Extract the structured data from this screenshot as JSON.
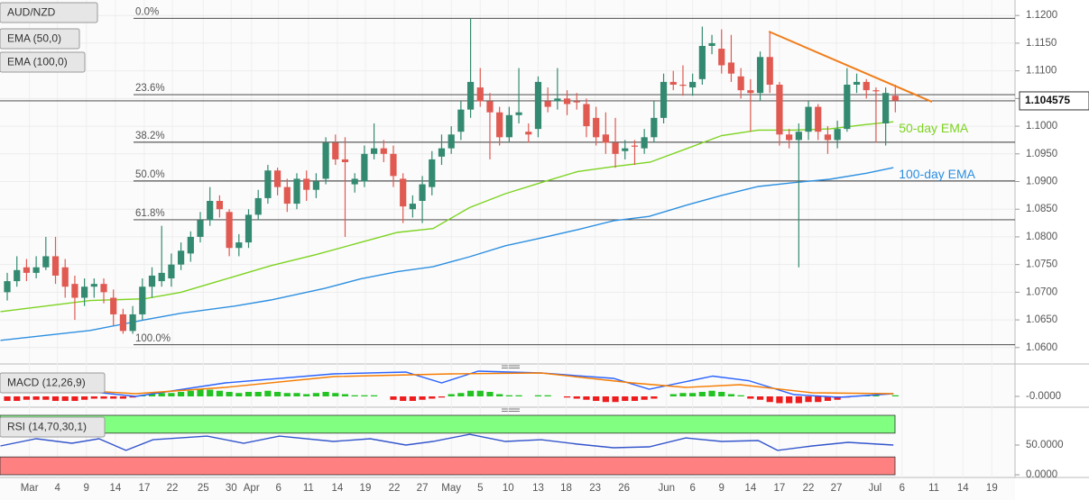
{
  "chart_data": [
    {
      "type": "candlestick",
      "title": "AUD/NZD",
      "xlim": [
        -0.75,
        104.4
      ],
      "xticks": [
        {
          "value": 2.3,
          "label": "Mar"
        },
        {
          "value": 5.2,
          "label": "4"
        },
        {
          "value": 8.2,
          "label": "9"
        },
        {
          "value": 11.2,
          "label": "14"
        },
        {
          "value": 14.2,
          "label": "17"
        },
        {
          "value": 17.1,
          "label": "22"
        },
        {
          "value": 20.3,
          "label": "25"
        },
        {
          "value": 23.2,
          "label": "30"
        },
        {
          "value": 25.3,
          "label": "Apr"
        },
        {
          "value": 28.1,
          "label": "6"
        },
        {
          "value": 31.2,
          "label": "11"
        },
        {
          "value": 34.2,
          "label": "14"
        },
        {
          "value": 37.1,
          "label": "19"
        },
        {
          "value": 40.1,
          "label": "22"
        },
        {
          "value": 43.0,
          "label": "27"
        },
        {
          "value": 46.0,
          "label": "May"
        },
        {
          "value": 49.0,
          "label": "5"
        },
        {
          "value": 51.9,
          "label": "10"
        },
        {
          "value": 55.0,
          "label": "13"
        },
        {
          "value": 57.9,
          "label": "18"
        },
        {
          "value": 60.9,
          "label": "23"
        },
        {
          "value": 63.9,
          "label": "26"
        },
        {
          "value": 68.3,
          "label": "Jun"
        },
        {
          "value": 71.0,
          "label": "6"
        },
        {
          "value": 74.0,
          "label": "9"
        },
        {
          "value": 77.0,
          "label": "14"
        },
        {
          "value": 80.0,
          "label": "17"
        },
        {
          "value": 83.0,
          "label": "22"
        },
        {
          "value": 85.9,
          "label": "27"
        },
        {
          "value": 89.9,
          "label": "Jul"
        },
        {
          "value": 92.7,
          "label": "6"
        },
        {
          "value": 96.0,
          "label": "11"
        },
        {
          "value": 99.0,
          "label": "14"
        },
        {
          "value": 102.0,
          "label": "19"
        }
      ],
      "ylim": [
        1.0572,
        1.1228
      ],
      "yticks": [
        {
          "value": 1.06,
          "label": "1.0600"
        },
        {
          "value": 1.065,
          "label": "1.0650"
        },
        {
          "value": 1.07,
          "label": "1.0700"
        },
        {
          "value": 1.075,
          "label": "1.0750"
        },
        {
          "value": 1.08,
          "label": "1.0800"
        },
        {
          "value": 1.085,
          "label": "1.0850"
        },
        {
          "value": 1.09,
          "label": "1.0900"
        },
        {
          "value": 1.095,
          "label": "1.0950"
        },
        {
          "value": 1.1,
          "label": "1.1000"
        },
        {
          "value": 1.105,
          "label": "1.1050"
        },
        {
          "value": 1.11,
          "label": "1.1100"
        },
        {
          "value": 1.115,
          "label": "1.1150"
        },
        {
          "value": 1.12,
          "label": "1.1200"
        }
      ],
      "grid": true,
      "up_color": "#338a70",
      "down_color": "#e05a52",
      "open": [
        1.07,
        1.072,
        1.0745,
        1.0735,
        1.0745,
        1.0765,
        1.0745,
        1.0715,
        1.069,
        1.071,
        1.0715,
        1.069,
        1.066,
        1.063,
        1.066,
        1.071,
        1.072,
        1.0725,
        1.075,
        1.077,
        1.08,
        1.083,
        1.0865,
        1.0845,
        1.078,
        1.079,
        1.084,
        1.087,
        1.092,
        1.089,
        1.086,
        1.0905,
        1.0885,
        1.0905,
        1.097,
        1.094,
        1.0895,
        1.09,
        1.095,
        1.096,
        1.095,
        1.0905,
        1.085,
        1.0865,
        1.089,
        1.0945,
        1.096,
        1.099,
        1.103,
        1.107,
        1.1045,
        1.1025,
        1.098,
        1.102,
        1.099,
        1.0995,
        1.1045,
        1.1045,
        1.105,
        1.1045,
        1.104,
        1.1015,
        1.0985,
        1.097,
        1.0955,
        1.0965,
        1.096,
        1.098,
        1.1015,
        1.108,
        1.1075,
        1.107,
        1.1085,
        1.1145,
        1.114,
        1.1115,
        1.109,
        1.1065,
        1.106,
        1.1125,
        1.1075,
        1.0985,
        1.0975,
        1.099,
        1.1035,
        1.0985,
        1.0975,
        1.0995,
        1.1075,
        1.108,
        1.1065,
        1.1005,
        1.1055
      ],
      "high": [
        1.0735,
        1.0765,
        1.076,
        1.0765,
        1.08,
        1.08,
        1.076,
        1.073,
        1.0725,
        1.0725,
        1.0725,
        1.0705,
        1.067,
        1.0675,
        1.0725,
        1.0745,
        1.082,
        1.077,
        1.079,
        1.081,
        1.0845,
        1.089,
        1.0875,
        1.085,
        1.0805,
        1.085,
        1.0885,
        1.093,
        1.0925,
        1.0905,
        1.0915,
        1.092,
        1.0915,
        1.098,
        1.0985,
        1.098,
        1.0915,
        1.0965,
        1.1005,
        1.0975,
        1.0965,
        1.0915,
        1.0875,
        1.091,
        1.0955,
        1.0985,
        1.1,
        1.1045,
        1.1195,
        1.1105,
        1.106,
        1.1035,
        1.1035,
        1.1105,
        1.1005,
        1.109,
        1.107,
        1.1105,
        1.1065,
        1.106,
        1.105,
        1.1035,
        1.1025,
        1.1015,
        1.0975,
        1.0975,
        1.0995,
        1.1045,
        1.1095,
        1.11,
        1.111,
        1.1095,
        1.118,
        1.1165,
        1.1175,
        1.1165,
        1.1105,
        1.1085,
        1.1135,
        1.1172,
        1.108,
        1.0995,
        1.1005,
        1.1045,
        1.104,
        1.1,
        1.101,
        1.1105,
        1.1095,
        1.1085,
        1.107,
        1.107,
        1.1075
      ],
      "low": [
        1.0685,
        1.071,
        1.072,
        1.0725,
        1.074,
        1.0715,
        1.069,
        1.065,
        1.0675,
        1.069,
        1.068,
        1.064,
        1.0625,
        1.0625,
        1.065,
        1.069,
        1.071,
        1.071,
        1.074,
        1.0755,
        1.079,
        1.082,
        1.0835,
        1.0765,
        1.0765,
        1.078,
        1.083,
        1.086,
        1.0875,
        1.0845,
        1.085,
        1.0865,
        1.087,
        1.0895,
        1.093,
        1.08,
        1.088,
        1.089,
        1.094,
        1.0935,
        1.089,
        1.0825,
        1.0835,
        1.0825,
        1.0875,
        1.093,
        1.095,
        1.0975,
        1.1015,
        1.1035,
        1.094,
        1.0965,
        1.097,
        1.1005,
        1.097,
        1.098,
        1.1025,
        1.103,
        1.102,
        1.103,
        1.098,
        1.0965,
        1.095,
        1.0925,
        1.094,
        1.093,
        1.095,
        1.097,
        1.1005,
        1.1065,
        1.1055,
        1.1055,
        1.1075,
        1.113,
        1.1095,
        1.108,
        1.105,
        1.099,
        1.1045,
        1.106,
        1.0965,
        1.096,
        1.0745,
        1.0975,
        1.0975,
        1.095,
        1.096,
        1.099,
        1.106,
        1.105,
        1.097,
        1.0965,
        1.1025
      ],
      "close": [
        1.072,
        1.074,
        1.0735,
        1.0745,
        1.0765,
        1.073,
        1.071,
        1.069,
        1.071,
        1.0715,
        1.07,
        1.066,
        1.063,
        1.066,
        1.071,
        1.073,
        1.0735,
        1.075,
        1.0775,
        1.08,
        1.083,
        1.0865,
        1.085,
        1.078,
        1.079,
        1.084,
        1.087,
        1.092,
        1.089,
        1.086,
        1.0905,
        1.0885,
        1.09,
        1.097,
        1.094,
        1.0935,
        1.0905,
        1.095,
        1.096,
        1.095,
        1.091,
        1.0855,
        1.086,
        1.0895,
        1.094,
        1.096,
        1.0985,
        1.103,
        1.108,
        1.1045,
        1.1025,
        1.098,
        1.102,
        1.1025,
        1.0985,
        1.108,
        1.1035,
        1.105,
        1.104,
        1.1043,
        1.1,
        1.098,
        1.097,
        1.095,
        1.096,
        1.0963,
        1.098,
        1.1015,
        1.108,
        1.1075,
        1.1073,
        1.108,
        1.1145,
        1.115,
        1.111,
        1.1095,
        1.1065,
        1.106,
        1.1125,
        1.1075,
        1.0985,
        1.0975,
        1.099,
        1.1035,
        1.099,
        1.0975,
        1.0995,
        1.1075,
        1.108,
        1.1065,
        1.1063,
        1.106,
        1.1046
      ],
      "series": [
        {
          "name": "EMA (50,0)",
          "annotation": "50-day EMA",
          "color": "#7dd321",
          "x": [
            -0.7,
            8.6,
            14.2,
            18.0,
            21.7,
            27.3,
            32.0,
            36.6,
            40.4,
            44.1,
            47.9,
            51.6,
            55.3,
            59.1,
            62.8,
            66.6,
            70.3,
            74.0,
            77.8,
            81.5,
            85.2,
            89.0,
            91.8
          ],
          "values": [
            1.0665,
            1.0685,
            1.0688,
            1.07,
            1.0719,
            1.0748,
            1.0768,
            1.079,
            1.0808,
            1.0815,
            1.0853,
            1.0878,
            1.0898,
            1.0918,
            1.0927,
            1.0935,
            1.0959,
            1.0983,
            1.0993,
            1.0993,
            1.0995,
            1.1003,
            1.1008
          ]
        },
        {
          "name": "EMA (100,0)",
          "annotation": "100-day EMA",
          "color": "#2d8fe0",
          "x": [
            -0.7,
            8.6,
            14.2,
            18.0,
            23.6,
            27.3,
            32.9,
            36.6,
            40.4,
            44.1,
            47.9,
            51.6,
            55.3,
            59.1,
            62.8,
            66.5,
            70.3,
            74.0,
            77.8,
            81.5,
            85.2,
            89.0,
            91.8
          ],
          "values": [
            1.0613,
            1.0631,
            1.065,
            1.0662,
            1.0675,
            1.0686,
            1.0707,
            1.0724,
            1.0737,
            1.0746,
            1.0764,
            1.0784,
            1.0798,
            1.0813,
            1.0829,
            1.0837,
            1.0857,
            1.0875,
            1.0891,
            1.0898,
            1.0904,
            1.0915,
            1.0925
          ]
        }
      ],
      "levels": [
        {
          "label": "0.0%",
          "value": 1.1195
        },
        {
          "label": "23.6%",
          "value": 1.1057
        },
        {
          "label": "38.2%",
          "value": 1.0971
        },
        {
          "label": "50.0%",
          "value": 1.0901
        },
        {
          "label": "61.8%",
          "value": 1.0831
        },
        {
          "label": "100.0%",
          "value": 1.0605
        }
      ],
      "trendline": {
        "x": [
          78.9,
          95.8
        ],
        "values": [
          1.1171,
          1.1044
        ],
        "color": "#f07d1a"
      },
      "last_price": 1.104575
    },
    {
      "type": "macd",
      "title": "MACD (12,26,9)",
      "ylim": [
        -0.0008,
        0.0024
      ],
      "yticks": [
        {
          "value": 0,
          "label": "-0.0000"
        }
      ],
      "up_color": "#22c322",
      "down_color": "#ee1c1c",
      "histogram": [
        -0.0004,
        -0.0004,
        -0.0003,
        -0.0003,
        -0.0003,
        -0.0004,
        -0.0004,
        -0.0004,
        -0.0003,
        -0.0002,
        -0.0002,
        -0.0002,
        -0.0002,
        -0.0001,
        0.0001,
        0.0002,
        0.0003,
        0.0003,
        0.0004,
        0.0005,
        0.0006,
        0.0006,
        0.0005,
        0.0004,
        0.0003,
        0.0004,
        0.0004,
        0.0005,
        0.0004,
        0.0003,
        0.0003,
        0.0002,
        0.0003,
        0.0004,
        0.0003,
        0.0002,
        0.0001,
        0.0001,
        0.0001,
        0,
        -0.0003,
        -0.0004,
        -0.0004,
        -0.0003,
        -0.0002,
        -0.0001,
        0.0002,
        0.0003,
        0.0005,
        0.0005,
        0.0004,
        0.0002,
        0.0001,
        0.0001,
        0,
        0.0001,
        0.0001,
        0,
        -0.0001,
        -0.0002,
        -0.0003,
        -0.0004,
        -0.0005,
        -0.0005,
        -0.0004,
        -0.0004,
        -0.0003,
        -0.0002,
        0,
        0.0002,
        0.0003,
        0.0003,
        0.0004,
        0.0005,
        0.0004,
        0.0002,
        0.0001,
        -0.0002,
        -0.0003,
        -0.0005,
        -0.0006,
        -0.0006,
        -0.0006,
        -0.0005,
        -0.0005,
        -0.0004,
        -0.0003,
        -0.0001,
        0,
        0.0001,
        0.0001,
        0,
        0.0001
      ],
      "series": [
        {
          "color": "#2962ff",
          "x": [
            -0.7,
            6.7,
            13.3,
            22.6,
            33.8,
            41.3,
            45.0,
            48.8,
            55.3,
            62.8,
            66.5,
            73.1,
            76.8,
            81.5,
            86.2,
            91.8
          ],
          "values": [
            0.00144,
            0.0006,
            0,
            0.0012,
            0.002,
            0.00216,
            0.0012,
            0.00224,
            0.00208,
            0.0016,
            0.00064,
            0.0018,
            0.0014,
            0.00016,
            -8e-05,
            0.00024
          ]
        },
        {
          "color": "#f57c00",
          "x": [
            -0.7,
            13.3,
            22.6,
            33.8,
            46.0,
            55.3,
            64.7,
            70.3,
            75.9,
            83.4,
            91.8
          ],
          "values": [
            0.00096,
            0.00024,
            0.0008,
            0.00176,
            0.002,
            0.00208,
            0.0012,
            0.0008,
            0.00104,
            0.00032,
            0.00024
          ]
        }
      ]
    },
    {
      "type": "rsi",
      "title": "RSI (14,70,30,1)",
      "ylim": [
        0,
        100
      ],
      "yticks": [
        {
          "value": 50,
          "label": "50.0000"
        },
        {
          "value": 0,
          "label": "0.0000"
        }
      ],
      "bands": [
        {
          "from": 70,
          "to": 100,
          "color": "#80ff80"
        },
        {
          "from": 0,
          "to": 30,
          "color": "#ff8080"
        }
      ],
      "series": [
        {
          "color": "#3355cc",
          "x": [
            -0.7,
            3.0,
            6.7,
            9.5,
            12.3,
            15.1,
            20.7,
            24.5,
            28.2,
            33.8,
            37.6,
            41.3,
            44.1,
            47.9,
            51.6,
            55.3,
            59.1,
            62.8,
            66.5,
            70.3,
            74.0,
            77.8,
            79.8,
            83.4,
            87.1,
            91.8
          ],
          "values": [
            48.5,
            60.6,
            53,
            60.6,
            41,
            59,
            65,
            53,
            65,
            56,
            60.6,
            50,
            56,
            68,
            56,
            59,
            51.5,
            45.5,
            47,
            62,
            56,
            57.6,
            41,
            48.5,
            54.5,
            50
          ]
        }
      ]
    }
  ]
}
